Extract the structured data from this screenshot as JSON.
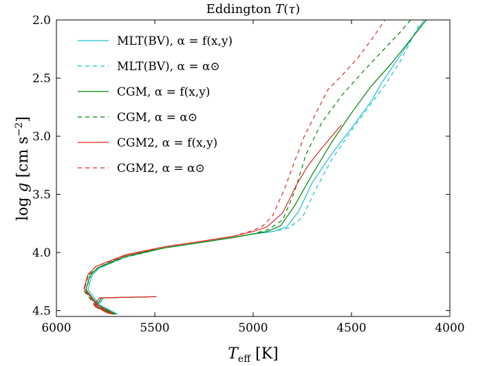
{
  "chart_data": {
    "type": "line",
    "title": "Eddington T(τ)",
    "xlabel": "T_eff [K]",
    "ylabel": "log g [cm s⁻²]",
    "xlim": [
      6000,
      4000
    ],
    "ylim": [
      4.55,
      2.0
    ],
    "x_inverted": true,
    "y_inverted": true,
    "grid": false,
    "legend_placement": "top-left",
    "x_ticks": [
      "6000",
      "5500",
      "5000",
      "4500",
      "4000"
    ],
    "x_tick_values": [
      6000,
      5500,
      5000,
      4500,
      4000
    ],
    "y_ticks": [
      "2.0",
      "2.5",
      "3.0",
      "3.5",
      "4.0",
      "4.5"
    ],
    "y_tick_values": [
      2.0,
      2.5,
      3.0,
      3.5,
      4.0,
      4.5
    ],
    "series": [
      {
        "name": "MLT(BV), α = f(x,y)",
        "color": "#17becf",
        "dash": "solid",
        "x": [
          5500,
          5760,
          5790,
          5720,
          5690,
          5780,
          5840,
          5820,
          5780,
          5650,
          5450,
          5250,
          5100,
          5000,
          4900,
          4830,
          4770,
          4700,
          4600,
          4500,
          4400,
          4350,
          4250,
          4130
        ],
        "y": [
          4.38,
          4.39,
          4.45,
          4.52,
          4.53,
          4.45,
          4.32,
          4.2,
          4.13,
          4.04,
          3.96,
          3.91,
          3.87,
          3.84,
          3.82,
          3.78,
          3.65,
          3.4,
          3.15,
          2.93,
          2.7,
          2.55,
          2.3,
          2.0
        ]
      },
      {
        "name": "MLT(BV), α = α⊙",
        "color": "#17becf",
        "dash": "dashed",
        "x": [
          5500,
          5760,
          5790,
          5720,
          5690,
          5780,
          5850,
          5830,
          5790,
          5650,
          5450,
          5250,
          5100,
          5000,
          4900,
          4820,
          4750,
          4680,
          4600,
          4500,
          4400,
          4330,
          4250,
          4150
        ],
        "y": [
          4.38,
          4.39,
          4.46,
          4.52,
          4.53,
          4.46,
          4.33,
          4.22,
          4.14,
          4.04,
          3.96,
          3.91,
          3.87,
          3.84,
          3.82,
          3.79,
          3.7,
          3.45,
          3.2,
          2.95,
          2.72,
          2.56,
          2.35,
          2.02
        ]
      },
      {
        "name": "CGM, α = f(x,y)",
        "color": "#008000",
        "dash": "solid",
        "x": [
          5500,
          5770,
          5800,
          5730,
          5700,
          5790,
          5850,
          5830,
          5790,
          5650,
          5450,
          5250,
          5100,
          5000,
          4930,
          4860,
          4790,
          4700,
          4600,
          4500,
          4400,
          4300,
          4200,
          4120
        ],
        "y": [
          4.38,
          4.39,
          4.46,
          4.52,
          4.53,
          4.45,
          4.32,
          4.2,
          4.13,
          4.03,
          3.96,
          3.91,
          3.87,
          3.84,
          3.82,
          3.77,
          3.6,
          3.33,
          3.05,
          2.8,
          2.57,
          2.38,
          2.17,
          2.0
        ]
      },
      {
        "name": "CGM, α = α⊙",
        "color": "#008000",
        "dash": "dashed",
        "x": [
          5500,
          5780,
          5810,
          5740,
          5710,
          5800,
          5860,
          5840,
          5800,
          5650,
          5450,
          5250,
          5100,
          5000,
          4920,
          4850,
          4790,
          4730,
          4650,
          4550,
          4450,
          4350,
          4250,
          4200
        ],
        "y": [
          4.38,
          4.39,
          4.46,
          4.52,
          4.53,
          4.46,
          4.33,
          4.21,
          4.14,
          4.04,
          3.96,
          3.91,
          3.87,
          3.84,
          3.8,
          3.72,
          3.48,
          3.15,
          2.88,
          2.65,
          2.46,
          2.28,
          2.1,
          2.0
        ]
      },
      {
        "name": "CGM2, α = f(x,y)",
        "color": "#e6261f",
        "dash": "solid",
        "x": [
          5500,
          5780,
          5810,
          5740,
          5710,
          5800,
          5860,
          5840,
          5800,
          5650,
          5450,
          5250,
          5100,
          5000,
          4930,
          4850,
          4780,
          4720,
          4650,
          4580,
          4550
        ],
        "y": [
          4.38,
          4.39,
          4.45,
          4.52,
          4.53,
          4.44,
          4.31,
          4.19,
          4.12,
          4.02,
          3.95,
          3.9,
          3.86,
          3.82,
          3.78,
          3.66,
          3.42,
          3.25,
          3.1,
          2.96,
          2.9
        ]
      },
      {
        "name": "CGM2, α = α⊙",
        "color": "#e6261f",
        "dash": "dashed",
        "x": [
          5490,
          5780,
          5810,
          5740,
          5710,
          5800,
          5860,
          5840,
          5800,
          5650,
          5450,
          5250,
          5100,
          5000,
          4950,
          4900,
          4840,
          4790,
          4740,
          4680,
          4620,
          4550,
          4470,
          4390,
          4330
        ],
        "y": [
          4.38,
          4.39,
          4.46,
          4.52,
          4.53,
          4.45,
          4.32,
          4.2,
          4.12,
          4.03,
          3.95,
          3.9,
          3.86,
          3.81,
          3.77,
          3.68,
          3.45,
          3.22,
          3.0,
          2.8,
          2.6,
          2.48,
          2.33,
          2.15,
          2.0
        ]
      }
    ]
  }
}
